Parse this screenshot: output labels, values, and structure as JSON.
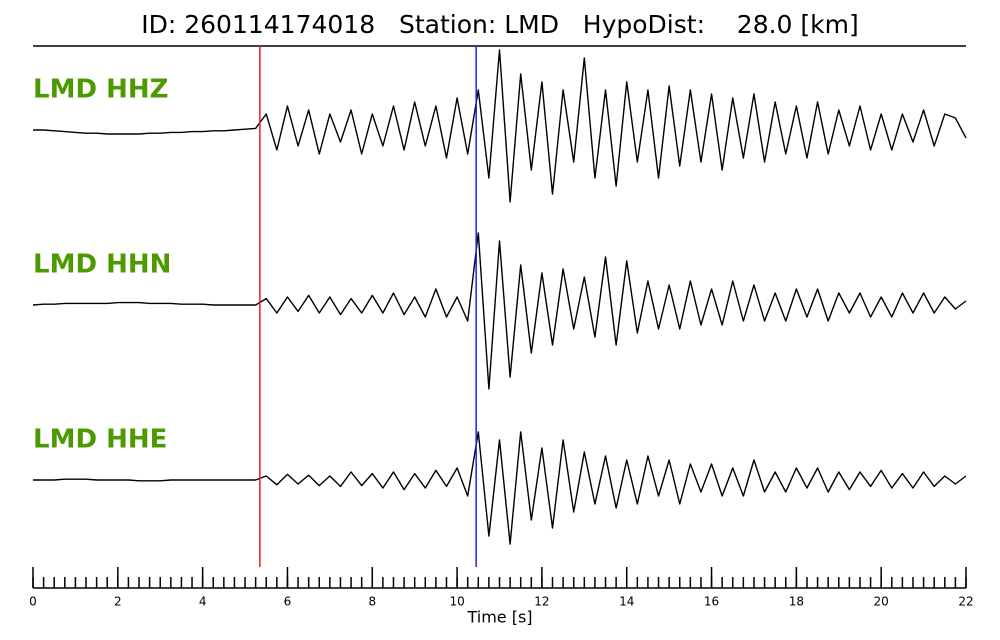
{
  "chart_data": {
    "type": "line",
    "title": "ID: 260114174018   Station: LMD   HypoDist:    28.0 [km]",
    "xlabel": "Time [s]",
    "xlim": [
      0,
      22
    ],
    "xticks": [
      0,
      2,
      4,
      6,
      8,
      10,
      12,
      14,
      16,
      18,
      20,
      22
    ],
    "minor_tick_step": 0.25,
    "label_color": "#4c9a00",
    "markers": [
      {
        "x": 5.35,
        "color": "#e02020"
      },
      {
        "x": 10.45,
        "color": "#2020e0"
      }
    ],
    "x": [
      0,
      0.25,
      0.5,
      0.75,
      1,
      1.25,
      1.5,
      1.75,
      2,
      2.25,
      2.5,
      2.75,
      3,
      3.25,
      3.5,
      3.75,
      4,
      4.25,
      4.5,
      4.75,
      5,
      5.25,
      5.5,
      5.75,
      6,
      6.25,
      6.5,
      6.75,
      7,
      7.25,
      7.5,
      7.75,
      8,
      8.25,
      8.5,
      8.75,
      9,
      9.25,
      9.5,
      9.75,
      10,
      10.25,
      10.5,
      10.75,
      11,
      11.25,
      11.5,
      11.75,
      12,
      12.25,
      12.5,
      12.75,
      13,
      13.25,
      13.5,
      13.75,
      14,
      14.25,
      14.5,
      14.75,
      15,
      15.25,
      15.5,
      15.75,
      16,
      16.25,
      16.5,
      16.75,
      17,
      17.25,
      17.5,
      17.75,
      18,
      18.25,
      18.5,
      18.75,
      19,
      19.25,
      19.5,
      19.75,
      20,
      20.25,
      20.5,
      20.75,
      21,
      21.25,
      21.5,
      21.75,
      22
    ],
    "series": [
      {
        "name": "LMD HHZ",
        "color": "#000000",
        "values": [
          0,
          0,
          -0.01,
          -0.02,
          -0.03,
          -0.04,
          -0.04,
          -0.05,
          -0.05,
          -0.05,
          -0.05,
          -0.04,
          -0.04,
          -0.03,
          -0.03,
          -0.02,
          -0.02,
          -0.01,
          -0.01,
          0,
          0.01,
          0.02,
          0.2,
          -0.25,
          0.3,
          -0.2,
          0.25,
          -0.3,
          0.2,
          -0.15,
          0.25,
          -0.3,
          0.2,
          -0.2,
          0.3,
          -0.25,
          0.35,
          -0.2,
          0.3,
          -0.35,
          0.4,
          -0.3,
          0.5,
          -0.6,
          1.0,
          -0.9,
          0.7,
          -0.5,
          0.6,
          -0.8,
          0.5,
          -0.4,
          0.9,
          -0.6,
          0.5,
          -0.7,
          0.6,
          -0.4,
          0.5,
          -0.6,
          0.55,
          -0.45,
          0.5,
          -0.4,
          0.45,
          -0.5,
          0.4,
          -0.35,
          0.45,
          -0.4,
          0.35,
          -0.3,
          0.3,
          -0.35,
          0.35,
          -0.3,
          0.25,
          -0.2,
          0.3,
          -0.25,
          0.2,
          -0.25,
          0.2,
          -0.15,
          0.25,
          -0.2,
          0.2,
          0.15,
          -0.1
        ]
      },
      {
        "name": "LMD HHN",
        "color": "#000000",
        "values": [
          0,
          0.01,
          0.01,
          0.02,
          0.02,
          0.02,
          0.02,
          0.02,
          0.03,
          0.03,
          0.03,
          0.02,
          0.02,
          0.02,
          0.01,
          0.01,
          0.01,
          0,
          0,
          0,
          0,
          0,
          0.08,
          -0.1,
          0.1,
          -0.08,
          0.12,
          -0.1,
          0.1,
          -0.12,
          0.08,
          -0.1,
          0.12,
          -0.1,
          0.15,
          -0.12,
          0.1,
          -0.15,
          0.2,
          -0.15,
          0.1,
          -0.2,
          0.9,
          -1.05,
          0.8,
          -0.9,
          0.5,
          -0.6,
          0.4,
          -0.5,
          0.45,
          -0.3,
          0.35,
          -0.4,
          0.6,
          -0.5,
          0.55,
          -0.35,
          0.3,
          -0.3,
          0.25,
          -0.3,
          0.3,
          -0.25,
          0.2,
          -0.25,
          0.3,
          -0.2,
          0.25,
          -0.2,
          0.15,
          -0.2,
          0.2,
          -0.15,
          0.2,
          -0.2,
          0.15,
          -0.1,
          0.15,
          -0.15,
          0.1,
          -0.15,
          0.15,
          -0.1,
          0.15,
          -0.1,
          0.1,
          -0.05,
          0.05
        ]
      },
      {
        "name": "LMD HHE",
        "color": "#000000",
        "values": [
          0,
          0,
          0,
          0.01,
          0.01,
          0.01,
          0,
          0,
          0,
          0,
          -0.01,
          -0.01,
          -0.01,
          0,
          0,
          0,
          0,
          0,
          0,
          0,
          0,
          0,
          0.05,
          -0.06,
          0.07,
          -0.05,
          0.06,
          -0.07,
          0.05,
          -0.08,
          0.1,
          -0.07,
          0.08,
          -0.1,
          0.1,
          -0.12,
          0.08,
          -0.1,
          0.12,
          -0.08,
          0.15,
          -0.2,
          0.6,
          -0.7,
          0.5,
          -0.8,
          0.6,
          -0.5,
          0.4,
          -0.6,
          0.5,
          -0.4,
          0.35,
          -0.3,
          0.3,
          -0.35,
          0.25,
          -0.3,
          0.3,
          -0.2,
          0.25,
          -0.3,
          0.2,
          -0.15,
          0.2,
          -0.2,
          0.15,
          -0.2,
          0.25,
          -0.15,
          0.1,
          -0.15,
          0.15,
          -0.1,
          0.15,
          -0.15,
          0.1,
          -0.12,
          0.1,
          -0.08,
          0.12,
          -0.1,
          0.08,
          -0.1,
          0.1,
          -0.08,
          0.05,
          -0.05,
          0.05
        ]
      }
    ]
  }
}
